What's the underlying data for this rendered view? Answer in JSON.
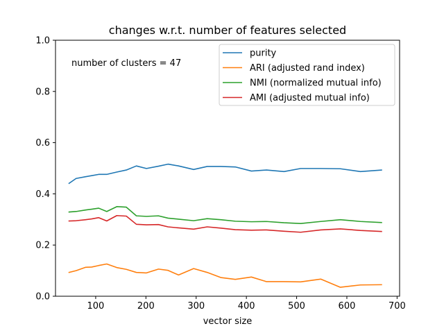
{
  "chart_data": {
    "type": "line",
    "title": "changes w.r.t. number of features selected",
    "xlabel": "vector size",
    "ylabel": "",
    "xlim": [
      20,
      705
    ],
    "ylim": [
      0.0,
      1.0
    ],
    "x_ticks": [
      100,
      200,
      300,
      400,
      500,
      600,
      700
    ],
    "y_ticks": [
      0.0,
      0.2,
      0.4,
      0.6,
      0.8,
      1.0
    ],
    "legend_position": "top-right",
    "annotation": "number of clusters = 47",
    "x": [
      47,
      61,
      80,
      92,
      106,
      122,
      142,
      161,
      181,
      201,
      225,
      244,
      265,
      295,
      322,
      349,
      378,
      410,
      440,
      475,
      508,
      548,
      587,
      627,
      669
    ],
    "series": [
      {
        "name": "purity",
        "color": "#1f77b4",
        "values": [
          0.441,
          0.46,
          0.467,
          0.471,
          0.476,
          0.476,
          0.485,
          0.493,
          0.509,
          0.499,
          0.508,
          0.516,
          0.509,
          0.495,
          0.507,
          0.507,
          0.505,
          0.489,
          0.493,
          0.487,
          0.499,
          0.499,
          0.498,
          0.487,
          0.493
        ]
      },
      {
        "name": "ARI (adjusted rand index)",
        "color": "#ff7f0e",
        "values": [
          0.093,
          0.1,
          0.113,
          0.114,
          0.12,
          0.126,
          0.112,
          0.105,
          0.093,
          0.091,
          0.106,
          0.101,
          0.083,
          0.108,
          0.093,
          0.073,
          0.066,
          0.075,
          0.057,
          0.057,
          0.056,
          0.067,
          0.035,
          0.044,
          0.045
        ]
      },
      {
        "name": "NMI (normalized mutual info)",
        "color": "#2ca02c",
        "values": [
          0.329,
          0.331,
          0.337,
          0.34,
          0.344,
          0.331,
          0.35,
          0.348,
          0.314,
          0.312,
          0.314,
          0.305,
          0.301,
          0.295,
          0.303,
          0.299,
          0.293,
          0.291,
          0.292,
          0.287,
          0.284,
          0.292,
          0.299,
          0.292,
          0.288
        ]
      },
      {
        "name": "AMI (adjusted mutual info)",
        "color": "#d62728",
        "values": [
          0.294,
          0.295,
          0.299,
          0.302,
          0.307,
          0.294,
          0.315,
          0.313,
          0.281,
          0.279,
          0.28,
          0.271,
          0.267,
          0.262,
          0.271,
          0.266,
          0.26,
          0.258,
          0.259,
          0.254,
          0.25,
          0.259,
          0.263,
          0.257,
          0.253
        ]
      }
    ]
  }
}
